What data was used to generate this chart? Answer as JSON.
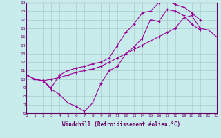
{
  "xlabel": "Windchill (Refroidissement éolien,°C)",
  "ylabel": "",
  "bg_color": "#c8ecec",
  "line_color": "#990099",
  "grid_color": "#aacccc",
  "axis_color": "#660066",
  "xmin": 0,
  "xmax": 23,
  "ymin": 6,
  "ymax": 19,
  "series": [
    {
      "x": [
        0,
        1,
        2,
        3,
        4,
        5,
        6,
        7,
        8,
        9,
        10,
        11,
        12,
        13,
        14,
        15,
        16,
        17,
        18,
        19,
        20,
        21
      ],
      "y": [
        10.5,
        10.0,
        9.8,
        9.0,
        10.5,
        11.0,
        11.3,
        11.5,
        11.8,
        12.0,
        12.5,
        14.0,
        15.5,
        16.5,
        17.8,
        18.0,
        19.0,
        19.2,
        18.8,
        18.5,
        17.8,
        17.0
      ]
    },
    {
      "x": [
        0,
        1,
        2,
        3,
        4,
        5,
        6,
        7,
        8,
        9,
        10,
        11,
        12,
        13,
        14,
        15,
        16,
        17,
        18,
        19,
        20,
        21
      ],
      "y": [
        10.5,
        10.0,
        9.8,
        8.8,
        8.2,
        7.2,
        6.8,
        6.2,
        7.2,
        9.5,
        11.0,
        11.5,
        13.0,
        13.8,
        14.8,
        17.0,
        16.8,
        18.2,
        18.0,
        17.5,
        16.5,
        15.8
      ]
    },
    {
      "x": [
        0,
        1,
        2,
        3,
        4,
        5,
        6,
        7,
        8,
        9,
        10,
        11,
        12,
        13,
        14,
        15,
        16,
        17,
        18,
        19,
        20,
        21,
        22,
        23
      ],
      "y": [
        10.5,
        10.0,
        9.8,
        10.0,
        10.2,
        10.5,
        10.8,
        11.0,
        11.2,
        11.5,
        12.0,
        12.5,
        13.0,
        13.5,
        14.0,
        14.5,
        15.0,
        15.5,
        16.0,
        17.2,
        17.5,
        16.0,
        15.8,
        15.0
      ]
    }
  ]
}
